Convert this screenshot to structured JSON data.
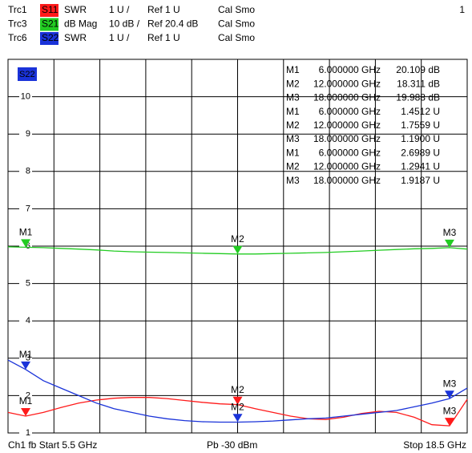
{
  "chart_data": {
    "type": "line",
    "x": [
      5.5,
      6,
      6.5,
      7,
      7.5,
      8,
      8.5,
      9,
      9.5,
      10,
      10.5,
      11,
      11.5,
      12,
      12.5,
      13,
      13.5,
      14,
      14.5,
      15,
      15.5,
      16,
      16.5,
      17,
      17.5,
      18,
      18.5
    ],
    "xlim": [
      5.5,
      18.5
    ],
    "x_divisions": 10,
    "ylim": [
      1,
      11
    ],
    "yticks": [
      1,
      2,
      3,
      4,
      5,
      6,
      7,
      8,
      9,
      10
    ],
    "y2lim": [
      -29.6,
      70.4
    ],
    "grid": true,
    "active_trace": "S22",
    "channel_number": "1",
    "series": [
      {
        "trace": "Trc1",
        "name": "S11",
        "format": "SWR",
        "scale": "1 U /",
        "ref": "Ref 1 U",
        "cal": "Cal Smo",
        "color": "#ff1a1a",
        "values": [
          1.55,
          1.45,
          1.55,
          1.68,
          1.8,
          1.88,
          1.93,
          1.95,
          1.95,
          1.92,
          1.87,
          1.82,
          1.78,
          1.76,
          1.65,
          1.55,
          1.45,
          1.38,
          1.36,
          1.42,
          1.52,
          1.58,
          1.55,
          1.42,
          1.22,
          1.19,
          1.9
        ],
        "markers": [
          {
            "label": "M1",
            "x": 6,
            "x_label": "6.000000 GHz",
            "y": 1.4512,
            "y_label": "1.4512 U"
          },
          {
            "label": "M2",
            "x": 12,
            "x_label": "12.000000 GHz",
            "y": 1.7559,
            "y_label": "1.7559 U"
          },
          {
            "label": "M3",
            "x": 18,
            "x_label": "18.000000 GHz",
            "y": 1.19,
            "y_label": "1.1900 U"
          }
        ]
      },
      {
        "trace": "Trc3",
        "name": "S21",
        "format": "dB Mag",
        "scale": "10 dB /",
        "ref": "Ref 20.4 dB",
        "cal": "Cal Smo",
        "color": "#22cc22",
        "axis": "y2",
        "values": [
          20.2,
          20.1,
          20.0,
          19.8,
          19.6,
          19.4,
          19.1,
          18.9,
          18.8,
          18.7,
          18.6,
          18.5,
          18.4,
          18.3,
          18.3,
          18.4,
          18.5,
          18.6,
          18.7,
          18.9,
          19.1,
          19.3,
          19.5,
          19.7,
          19.8,
          20.0,
          19.6
        ],
        "markers": [
          {
            "label": "M1",
            "x": 6,
            "x_label": "6.000000 GHz",
            "y": 20.109,
            "y_label": "20.109 dB"
          },
          {
            "label": "M2",
            "x": 12,
            "x_label": "12.000000 GHz",
            "y": 18.311,
            "y_label": "18.311 dB"
          },
          {
            "label": "M3",
            "x": 18,
            "x_label": "18.000000 GHz",
            "y": 19.988,
            "y_label": "19.988 dB"
          }
        ]
      },
      {
        "trace": "Trc6",
        "name": "S22",
        "format": "SWR",
        "scale": "1 U /",
        "ref": "Ref 1 U",
        "cal": "Cal Smo",
        "color": "#1a33d9",
        "values": [
          2.95,
          2.7,
          2.4,
          2.2,
          2.0,
          1.8,
          1.65,
          1.55,
          1.45,
          1.38,
          1.33,
          1.3,
          1.29,
          1.29,
          1.3,
          1.32,
          1.35,
          1.38,
          1.4,
          1.45,
          1.5,
          1.55,
          1.6,
          1.7,
          1.8,
          1.92,
          2.2
        ],
        "markers": [
          {
            "label": "M1",
            "x": 6,
            "x_label": "6.000000 GHz",
            "y": 2.6989,
            "y_label": "2.6989 U"
          },
          {
            "label": "M2",
            "x": 12,
            "x_label": "12.000000 GHz",
            "y": 1.2941,
            "y_label": "1.2941 U"
          },
          {
            "label": "M3",
            "x": 18,
            "x_label": "18.000000 GHz",
            "y": 1.9187,
            "y_label": "1.9187 U"
          }
        ]
      }
    ],
    "table_order": [
      1,
      0,
      2
    ]
  },
  "footer": {
    "channel": "Ch1  fb  Start 5.5 GHz",
    "power": "Pb  -30 dBm",
    "stop": "Stop 18.5 GHz"
  }
}
